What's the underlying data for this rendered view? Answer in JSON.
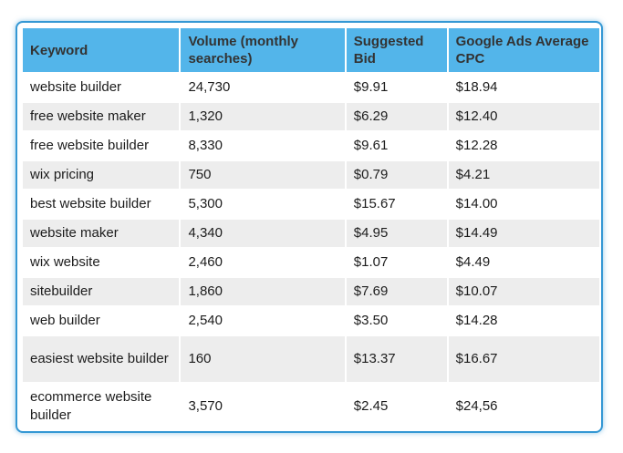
{
  "table": {
    "headers": [
      "Keyword",
      "Volume (monthly searches)",
      "Suggested Bid",
      "Google Ads Average CPC"
    ],
    "rows": [
      [
        "website builder",
        "24,730",
        "$9.91",
        "$18.94"
      ],
      [
        "free website maker",
        "1,320",
        "$6.29",
        "$12.40"
      ],
      [
        "free website builder",
        "8,330",
        "$9.61",
        "$12.28"
      ],
      [
        "wix pricing",
        "750",
        "$0.79",
        "$4.21"
      ],
      [
        "best website builder",
        "5,300",
        "$15.67",
        "$14.00"
      ],
      [
        "website maker",
        "4,340",
        "$4.95",
        "$14.49"
      ],
      [
        "wix website",
        "2,460",
        "$1.07",
        "$4.49"
      ],
      [
        "sitebuilder",
        "1,860",
        "$7.69",
        "$10.07"
      ],
      [
        "web builder",
        "2,540",
        "$3.50",
        "$14.28"
      ],
      [
        "easiest website builder",
        "160",
        "$13.37",
        "$16.67"
      ],
      [
        "ecommerce website builder",
        "3,570",
        "$2.45",
        "$24,56"
      ]
    ]
  },
  "colors": {
    "frame_border": "#3598d4",
    "header_bg": "#53b5ea",
    "row_alt_bg": "#ededed"
  }
}
